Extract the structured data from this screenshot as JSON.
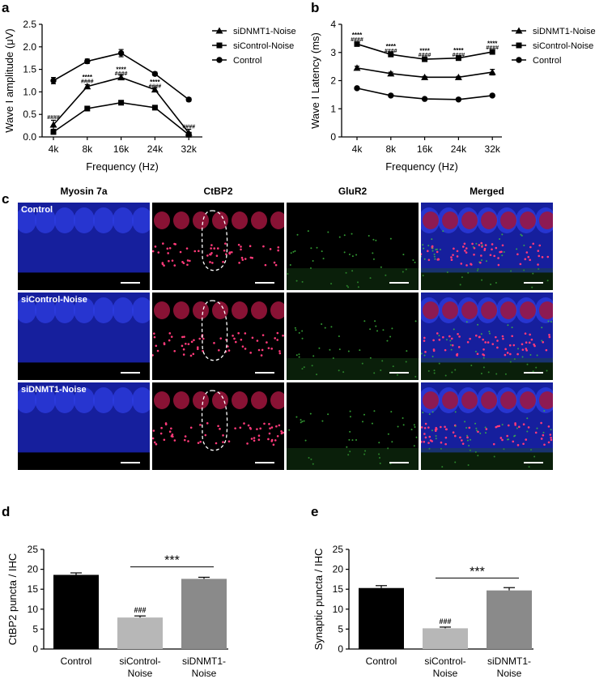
{
  "panels": {
    "a": "a",
    "b": "b",
    "c": "c",
    "d": "d",
    "e": "e"
  },
  "chart_data": [
    {
      "panel": "a",
      "type": "line",
      "xlabel": "Frequency (Hz)",
      "ylabel": "Wave I amplitude (μV)",
      "categories": [
        "4k",
        "8k",
        "16k",
        "24k",
        "32k"
      ],
      "ylim": [
        0,
        2.5
      ],
      "yticks": [
        "0.0",
        "0.5",
        "1.0",
        "1.5",
        "2.0",
        "2.5"
      ],
      "legend_position": "top-right",
      "series": [
        {
          "name": "siDNMT1-Noise",
          "marker": "triangle",
          "values": [
            0.27,
            1.12,
            1.32,
            1.05,
            0.09
          ],
          "errors": [
            0.1,
            0.04,
            0.05,
            0.04,
            0.08
          ]
        },
        {
          "name": "siControl-Noise",
          "marker": "square",
          "values": [
            0.11,
            0.63,
            0.76,
            0.65,
            0.05
          ],
          "errors": [
            0.04,
            0.03,
            0.03,
            0.04,
            0.04
          ]
        },
        {
          "name": "Control",
          "marker": "circle",
          "values": [
            1.25,
            1.68,
            1.86,
            1.4,
            0.83
          ],
          "errors": [
            0.07,
            0.05,
            0.08,
            0.04,
            0.04
          ]
        }
      ],
      "annotations": [
        {
          "x": "4k",
          "y": 0.45,
          "text": "####"
        },
        {
          "x": "8k",
          "y": 1.33,
          "text": "****"
        },
        {
          "x": "8k",
          "y": 1.25,
          "text": "####"
        },
        {
          "x": "16k",
          "y": 1.5,
          "text": "****"
        },
        {
          "x": "16k",
          "y": 1.42,
          "text": "####"
        },
        {
          "x": "24k",
          "y": 1.22,
          "text": "****"
        },
        {
          "x": "24k",
          "y": 1.14,
          "text": "####"
        },
        {
          "x": "32k",
          "y": 0.24,
          "text": "####"
        }
      ]
    },
    {
      "panel": "b",
      "type": "line",
      "xlabel": "Frequency (Hz)",
      "ylabel": "Wave I Latency (ms)",
      "categories": [
        "4k",
        "8k",
        "16k",
        "24k",
        "32k"
      ],
      "ylim": [
        0,
        4
      ],
      "yticks": [
        "0",
        "1",
        "2",
        "3",
        "4"
      ],
      "legend_position": "top-right",
      "series": [
        {
          "name": "siDNMT1-Noise",
          "marker": "triangle",
          "values": [
            2.45,
            2.25,
            2.12,
            2.12,
            2.3
          ],
          "errors": [
            0.06,
            0.05,
            0.03,
            0.03,
            0.1
          ]
        },
        {
          "name": "siControl-Noise",
          "marker": "square",
          "values": [
            3.3,
            2.93,
            2.76,
            2.8,
            3.02
          ],
          "errors": [
            0.04,
            0.04,
            0.03,
            0.04,
            0.05
          ]
        },
        {
          "name": "Control",
          "marker": "circle",
          "values": [
            1.73,
            1.47,
            1.35,
            1.33,
            1.47
          ],
          "errors": [
            0.03,
            0.03,
            0.03,
            0.03,
            0.04
          ]
        }
      ],
      "annotations": [
        {
          "x": "4k",
          "y": 3.62,
          "text": "****"
        },
        {
          "x": "4k",
          "y": 3.48,
          "text": "####"
        },
        {
          "x": "8k",
          "y": 3.22,
          "text": "****"
        },
        {
          "x": "8k",
          "y": 3.08,
          "text": "####"
        },
        {
          "x": "16k",
          "y": 3.07,
          "text": "****"
        },
        {
          "x": "16k",
          "y": 2.93,
          "text": "####"
        },
        {
          "x": "24k",
          "y": 3.08,
          "text": "****"
        },
        {
          "x": "24k",
          "y": 2.94,
          "text": "####"
        },
        {
          "x": "32k",
          "y": 3.33,
          "text": "****"
        },
        {
          "x": "32k",
          "y": 3.19,
          "text": "####"
        }
      ]
    },
    {
      "panel": "d",
      "type": "bar",
      "ylabel": "CtBP2 puncta / IHC",
      "categories": [
        "Control",
        "siControl-\nNoise",
        "siDNMT1-\nNoise"
      ],
      "values": [
        18.6,
        7.9,
        17.6
      ],
      "errors": [
        0.5,
        0.4,
        0.4
      ],
      "colors": [
        "#000000",
        "#b7b7b7",
        "#8a8a8a"
      ],
      "ylim": [
        0,
        25
      ],
      "yticks": [
        "0",
        "5",
        "10",
        "15",
        "20",
        "25"
      ],
      "annotations": [
        {
          "bar": 1,
          "text": "###"
        }
      ],
      "significance": {
        "from": 1,
        "to": 2,
        "y": 20.6,
        "text": "***"
      }
    },
    {
      "panel": "e",
      "type": "bar",
      "ylabel": "Synaptic puncta / IHC",
      "categories": [
        "Control",
        "siControl-\nNoise",
        "siDNMT1-\nNoise"
      ],
      "values": [
        15.3,
        5.2,
        14.7
      ],
      "errors": [
        0.6,
        0.3,
        0.7
      ],
      "colors": [
        "#000000",
        "#b7b7b7",
        "#8a8a8a"
      ],
      "ylim": [
        0,
        25
      ],
      "yticks": [
        "0",
        "5",
        "10",
        "15",
        "20",
        "25"
      ],
      "annotations": [
        {
          "bar": 1,
          "text": "###"
        }
      ],
      "significance": {
        "from": 1,
        "to": 2,
        "y": 17.8,
        "text": "***"
      }
    }
  ],
  "micrographs": {
    "columns": [
      "Myosin 7a",
      "CtBP2",
      "GluR2",
      "Merged"
    ],
    "rows": [
      "Control",
      "siControl-Noise",
      "siDNMT1-Noise"
    ]
  }
}
